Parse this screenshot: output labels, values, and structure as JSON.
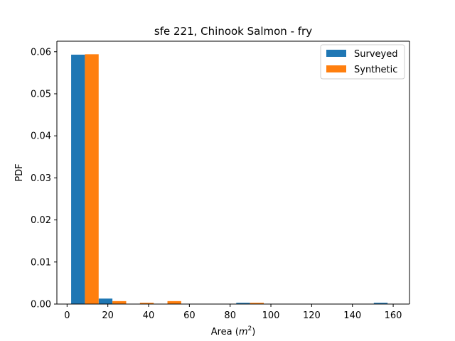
{
  "chart_data": {
    "type": "bar",
    "title": "sfe 221, Chinook Salmon - fry",
    "xlabel": "Area (",
    "xlabel_math": "m",
    "xlabel_sup": "2",
    "xlabel_end": ")",
    "ylabel": "PDF",
    "xlim": [
      -5,
      168
    ],
    "ylim": [
      0,
      0.0625
    ],
    "xticks": [
      0,
      20,
      40,
      60,
      80,
      100,
      120,
      140,
      160
    ],
    "yticks": [
      0.0,
      0.01,
      0.02,
      0.03,
      0.04,
      0.05,
      0.06
    ],
    "ytick_labels": [
      "0.00",
      "0.01",
      "0.02",
      "0.03",
      "0.04",
      "0.05",
      "0.06"
    ],
    "bin_edges": [
      2,
      15.5,
      29,
      42.5,
      56,
      69.5,
      83,
      96.5,
      110,
      123.5,
      137,
      150.5,
      164
    ],
    "legend_position": "upper right",
    "series": [
      {
        "name": "Surveyed",
        "color": "#1f77b4",
        "values": [
          0.0593,
          0.0013,
          0.0,
          0.0,
          0.0,
          0.0,
          0.0003,
          0.0,
          0.0,
          0.0,
          0.0,
          0.0003
        ]
      },
      {
        "name": "Synthetic",
        "color": "#ff7f0e",
        "values": [
          0.0594,
          0.0007,
          0.0003,
          0.0007,
          0.0,
          0.0,
          0.0003,
          0.0,
          0.0,
          0.0,
          0.0,
          0.0
        ]
      }
    ]
  }
}
